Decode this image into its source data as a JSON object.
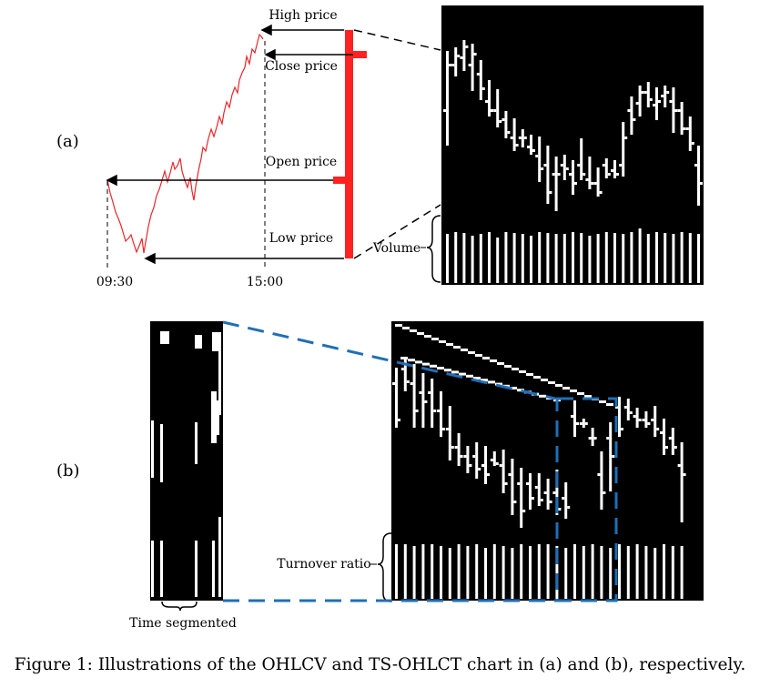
{
  "panel_a": {
    "label": "(a)",
    "annotations": {
      "high": "High price",
      "close": "Close price",
      "open": "Open price",
      "low": "Low price",
      "volume": "Volume"
    },
    "time_ticks": [
      "09:30",
      "15:00"
    ],
    "colors": {
      "price_line": "#e8262a",
      "candle": "#ff2222"
    }
  },
  "panel_b": {
    "label": "(b)",
    "annotations": {
      "turnover": "Turnover ratio",
      "segment": "Time segmented"
    },
    "colors": {
      "dashed": "#1e6fb8"
    }
  },
  "caption": "Figure 1: Illustrations of the OHLCV and TS-OHLCT chart in (a) and (b), respectively."
}
